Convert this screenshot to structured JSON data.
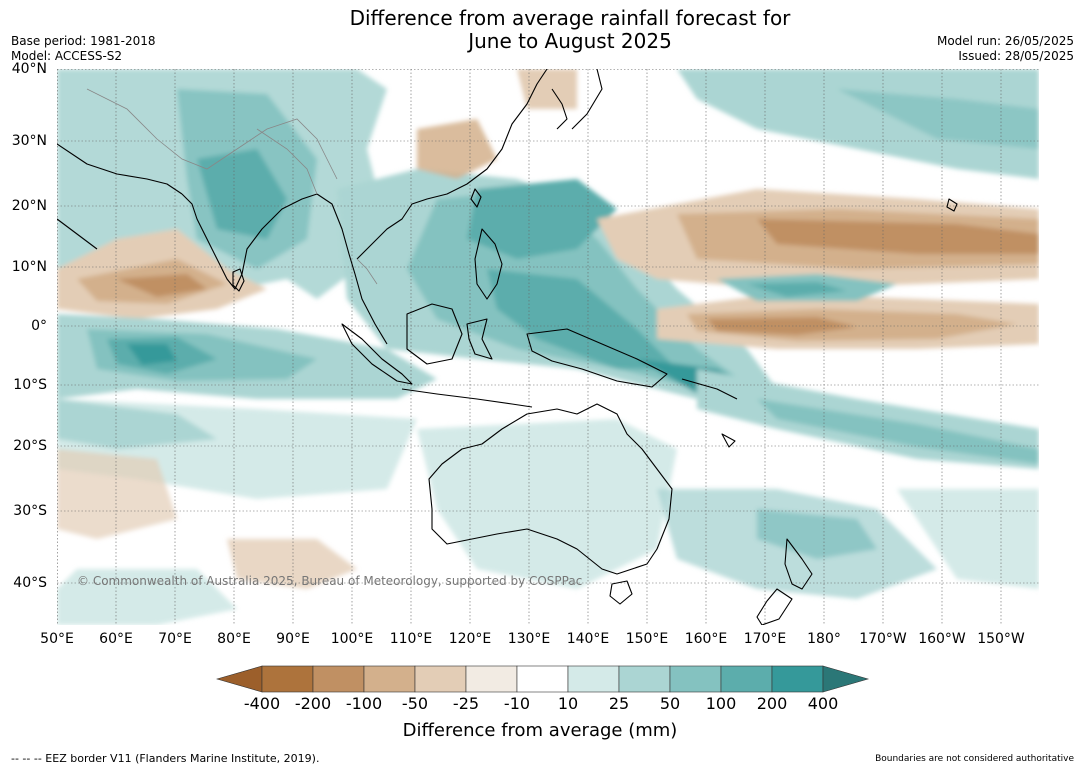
{
  "title_line1": "Difference from average rainfall forecast for",
  "title_line2": "June to August 2025",
  "base_period": "Base period: 1981-2018",
  "model": "Model: ACCESS-S2",
  "model_run": "Model run: 26/05/2025",
  "issued": "Issued: 28/05/2025",
  "lat_labels": [
    "40°N",
    "30°N",
    "20°N",
    "10°N",
    "0°",
    "10°S",
    "20°S",
    "30°S",
    "40°S"
  ],
  "lon_labels": [
    "50°E",
    "60°E",
    "70°E",
    "80°E",
    "90°E",
    "100°E",
    "110°E",
    "120°E",
    "130°E",
    "140°E",
    "150°E",
    "160°E",
    "170°E",
    "180°",
    "170°W",
    "160°W",
    "150°W"
  ],
  "colorbar": {
    "title": "Difference from average (mm)",
    "ticks": [
      "-400",
      "-200",
      "-100",
      "-50",
      "-25",
      "-10",
      "10",
      "25",
      "50",
      "100",
      "200",
      "400"
    ],
    "colors": [
      "#9c5f2b",
      "#ad733c",
      "#c09063",
      "#d3b08c",
      "#e3cdb6",
      "#f2ebe3",
      "#ffffff",
      "#d4eae8",
      "#abd5d3",
      "#84c2c0",
      "#5cadac",
      "#35999a",
      "#2b7777"
    ]
  },
  "copyright": "© Commonwealth of Australia 2025, Bureau of Meteorology, supported by COSPPac",
  "eez_note": "--  --  -- EEZ border V11 (Flanders Marine Institute, 2019).",
  "boundary_note": "Boundaries are not considered authoritative"
}
